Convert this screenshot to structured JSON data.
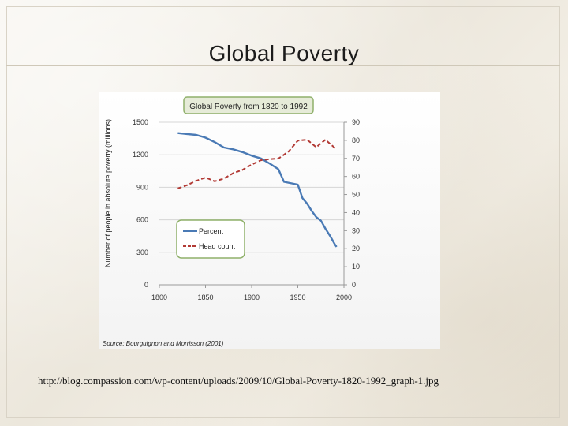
{
  "slide": {
    "title": "Global Poverty"
  },
  "caption": {
    "url": "http://blog.compassion.com/wp-content/uploads/2009/10/Global-Poverty-1820-1992_graph-1.jpg"
  },
  "chart_data": {
    "type": "line",
    "title": "Global Poverty from 1820 to 1992",
    "ylabel": "Number of people in absolute poverty (millions)",
    "xlim": [
      1800,
      2000
    ],
    "ylim_left": [
      0,
      1500
    ],
    "ylim_right": [
      0,
      90
    ],
    "x_ticks": [
      "1800",
      "1850",
      "1900",
      "1950",
      "2000"
    ],
    "y_ticks_left": [
      "0",
      "300",
      "600",
      "900",
      "1200",
      "1500"
    ],
    "y_ticks_right": [
      "0",
      "10",
      "20",
      "30",
      "40",
      "50",
      "60",
      "70",
      "80",
      "90"
    ],
    "grid": "horizontal",
    "legend_position": "lower-left",
    "source": "Source: Bourguignon and Morrisson (2001)",
    "colors": {
      "percent": "#4a7ab5",
      "headcount": "#b23a35",
      "title_box": "#e6ebd8",
      "title_box_border": "#8fb06a"
    },
    "series": [
      {
        "name": "Percent",
        "axis": "right",
        "x": [
          1820,
          1830,
          1840,
          1850,
          1860,
          1870,
          1880,
          1890,
          1900,
          1910,
          1920,
          1929,
          1935,
          1950,
          1955,
          1960,
          1965,
          1970,
          1975,
          1980,
          1985,
          1990,
          1992
        ],
        "y": [
          84,
          83.5,
          83,
          81.5,
          79,
          76,
          75,
          73.5,
          71.5,
          70,
          67,
          64,
          57,
          55.5,
          48,
          45,
          41,
          37.5,
          35.5,
          31,
          27,
          22.5,
          21
        ]
      },
      {
        "name": "Head count",
        "axis": "left",
        "x": [
          1820,
          1830,
          1840,
          1850,
          1860,
          1870,
          1880,
          1890,
          1900,
          1910,
          1920,
          1929,
          1940,
          1950,
          1960,
          1970,
          1980,
          1985,
          1990,
          1992
        ],
        "y": [
          890,
          920,
          960,
          990,
          955,
          980,
          1030,
          1060,
          1110,
          1150,
          1160,
          1165,
          1230,
          1330,
          1340,
          1270,
          1340,
          1300,
          1265,
          1260
        ]
      }
    ]
  }
}
